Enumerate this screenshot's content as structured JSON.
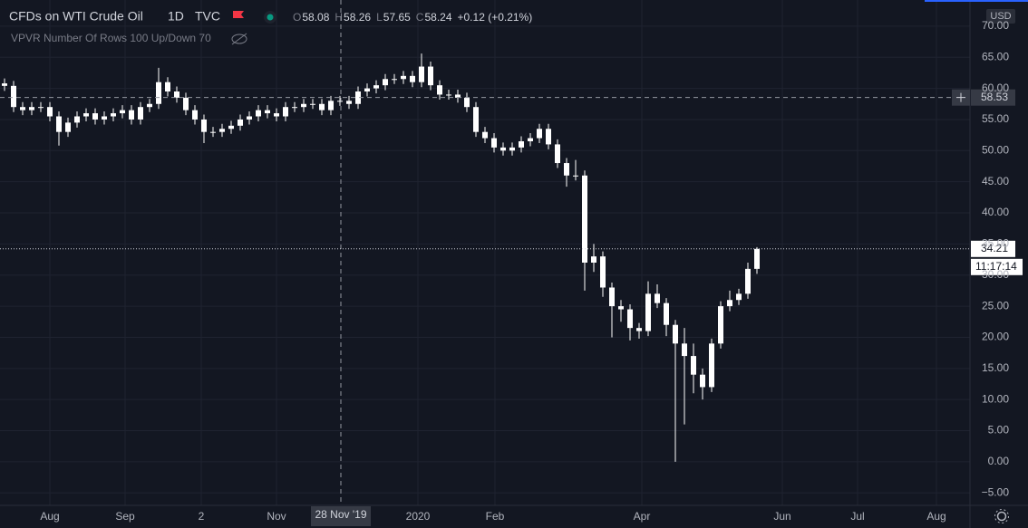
{
  "header": {
    "symbol": "CFDs on WTI Crude Oil",
    "interval": "1D",
    "exchange": "TVC",
    "legend": [
      {
        "key": "O",
        "value": 58.08
      },
      {
        "key": "H",
        "value": 58.26
      },
      {
        "key": "L",
        "value": 57.65
      },
      {
        "key": "C",
        "value": 58.24
      }
    ],
    "change": "+0.12 (+0.21%)",
    "indicator": "VPVR Number Of Rows 100 Up/Down 70"
  },
  "chart_data": {
    "type": "candlestick",
    "currency": "USD",
    "color": "#ffffff",
    "grid": true,
    "open": [
      60.8,
      60.4,
      57,
      56.5,
      57,
      57,
      55.5,
      53,
      54.5,
      55.5,
      56,
      55,
      55.5,
      56,
      56.5,
      55,
      57,
      57.5,
      61,
      59.5,
      58.5,
      56.5,
      55,
      53,
      53,
      53.5,
      54,
      55,
      55.5,
      56.5,
      56,
      55.5,
      57,
      57,
      57.5,
      57.5,
      56.5,
      58,
      58,
      57.5,
      59.5,
      60,
      60.5,
      61.5,
      61.5,
      62,
      61,
      63.5,
      60.5,
      59,
      59,
      58.5,
      57,
      53,
      52,
      50.5,
      50,
      50.5,
      51.5,
      52,
      53.5,
      51,
      48,
      46,
      46,
      32,
      33,
      28,
      25,
      24.5,
      21.5,
      21,
      27,
      25.5,
      22,
      19,
      17,
      14,
      12,
      19,
      25,
      26,
      27,
      31
    ],
    "high": [
      61.6,
      61.2,
      57.8,
      57.8,
      57.8,
      57.8,
      56.3,
      55.3,
      56.3,
      56.8,
      56.8,
      56.3,
      56.8,
      57.3,
      57.3,
      57.8,
      58.3,
      63.3,
      61.8,
      60.3,
      59.3,
      57.3,
      55.8,
      53.8,
      54.3,
      54.8,
      55.8,
      56.3,
      57.3,
      57.3,
      56.8,
      57.8,
      57.8,
      58.3,
      58.3,
      58.3,
      58.8,
      58.8,
      58.8,
      60.3,
      60.8,
      61.3,
      62.3,
      62.3,
      62.8,
      62.8,
      65.6,
      64.3,
      61.3,
      59.8,
      59.8,
      59.3,
      57.8,
      53.8,
      52.8,
      51.3,
      51.3,
      52.3,
      52.8,
      54.3,
      54.3,
      51.8,
      48.8,
      48.5,
      46.8,
      35,
      33.8,
      28.8,
      26,
      25.3,
      22.3,
      29,
      28.5,
      26.3,
      22.8,
      21.5,
      19,
      15,
      19.8,
      25.8,
      27.5,
      27.8,
      32,
      34.5
    ],
    "low": [
      59.6,
      56.2,
      55.7,
      55.7,
      56.2,
      54.7,
      50.8,
      52.2,
      53.7,
      54.7,
      54.2,
      54.2,
      54.7,
      55.2,
      54.2,
      54.2,
      56.2,
      56.7,
      58.7,
      57.7,
      55.7,
      54.2,
      51.2,
      52.2,
      52.2,
      52.7,
      53.2,
      54.2,
      54.7,
      55.2,
      54.7,
      54.7,
      56.2,
      56.2,
      56.7,
      55.7,
      55.7,
      57.2,
      56.7,
      56.7,
      58.7,
      59.2,
      59.7,
      60.7,
      60.7,
      60.2,
      60.2,
      59.7,
      58.2,
      58.2,
      57.7,
      56.2,
      52.2,
      51.2,
      49.7,
      49.2,
      49.2,
      49.7,
      50.7,
      51.2,
      50.2,
      47.2,
      44.2,
      45.2,
      27.5,
      30.5,
      26.5,
      20,
      22.5,
      19.5,
      19.8,
      20.2,
      24.7,
      20.2,
      0,
      6,
      11,
      10,
      11.2,
      18.2,
      24.2,
      25.2,
      26.2,
      30.2
    ],
    "close": [
      60.4,
      57,
      56.5,
      57,
      57,
      55.5,
      53,
      54.5,
      55.5,
      56,
      55,
      55.5,
      56,
      56.5,
      55,
      57,
      57.5,
      61,
      59.5,
      58.5,
      56.5,
      55,
      53,
      53,
      53.5,
      54,
      55,
      55.5,
      56.5,
      56,
      55.5,
      57,
      57,
      57.5,
      57.5,
      56.5,
      58,
      58,
      57.5,
      59.5,
      60,
      60.5,
      61.5,
      61.5,
      62,
      61,
      63.5,
      60.5,
      59,
      59,
      58.5,
      57,
      53,
      52,
      50.5,
      50,
      50.5,
      51.5,
      52,
      53.5,
      51,
      48,
      46,
      46,
      32,
      33,
      28,
      25,
      24.5,
      21.5,
      21,
      27,
      25.5,
      22,
      19,
      17,
      14,
      12,
      19,
      25,
      26,
      27,
      31,
      34.21
    ],
    "xlim": [
      -0.5,
      106.5
    ],
    "xticks": [
      {
        "value": 5,
        "label": "Aug"
      },
      {
        "value": 13.3,
        "label": "Sep"
      },
      {
        "value": 21.7,
        "label": "2"
      },
      {
        "value": 30,
        "label": "Nov"
      },
      {
        "value": 45.6,
        "label": "2020"
      },
      {
        "value": 54.1,
        "label": "Feb"
      },
      {
        "value": 70.3,
        "label": "Apr"
      },
      {
        "value": 85.8,
        "label": "Jun"
      },
      {
        "value": 94.1,
        "label": "Jul"
      },
      {
        "value": 102.8,
        "label": "Aug"
      }
    ],
    "ylim": [
      -7,
      74.2
    ],
    "yticks": [
      {
        "value": -5,
        "label": "−5.00"
      },
      {
        "value": 0,
        "label": "0.00"
      },
      {
        "value": 5,
        "label": "5.00"
      },
      {
        "value": 10,
        "label": "10.00"
      },
      {
        "value": 15,
        "label": "15.00"
      },
      {
        "value": 20,
        "label": "20.00"
      },
      {
        "value": 25,
        "label": "25.00"
      },
      {
        "value": 30,
        "label": "30.00"
      },
      {
        "value": 35,
        "label": "35.00"
      },
      {
        "value": 40,
        "label": "40.00"
      },
      {
        "value": 45,
        "label": "45.00"
      },
      {
        "value": 50,
        "label": "50.00"
      },
      {
        "value": 55,
        "label": "55.00"
      },
      {
        "value": 60,
        "label": "60.00"
      },
      {
        "value": 65,
        "label": "65.00"
      },
      {
        "value": 70,
        "label": "70.00"
      }
    ],
    "crosshair": {
      "index": 37.1,
      "price": 58.53,
      "date": "28 Nov '19"
    },
    "countdown": "11:17:14"
  }
}
